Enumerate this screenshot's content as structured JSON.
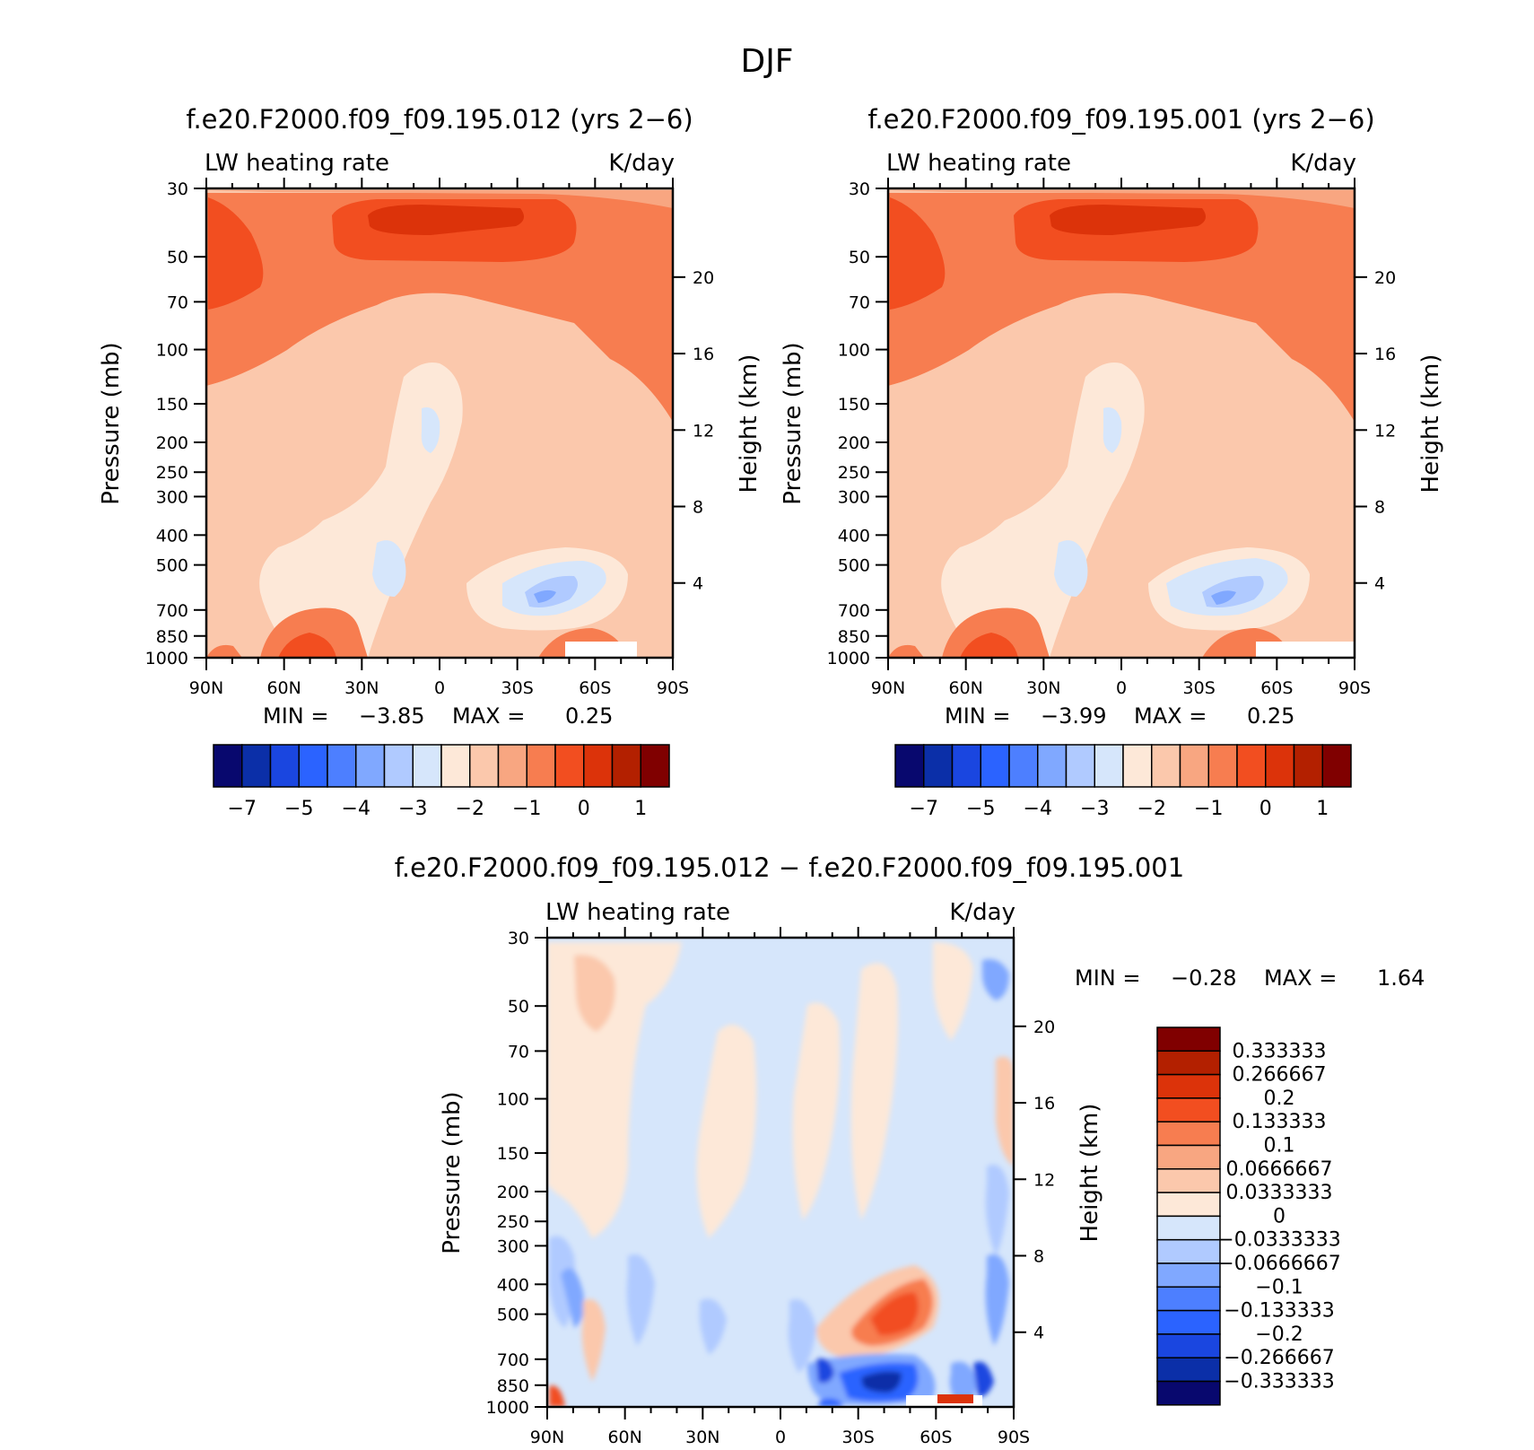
{
  "page_title": "DJF",
  "chart_data": [
    {
      "id": "panel1",
      "type": "heatmap",
      "title": "f.e20.F2000.f09_f09.195.012 (yrs 2−6)",
      "left_string": "LW heating rate",
      "right_string": "K/day",
      "ylabel": "Pressure (mb)",
      "ylabel_right": "Height (km)",
      "x_ticks": [
        "90N",
        "60N",
        "30N",
        "0",
        "30S",
        "60S",
        "90S"
      ],
      "y_ticks": [
        "30",
        "50",
        "70",
        "100",
        "150",
        "200",
        "250",
        "300",
        "400",
        "500",
        "700",
        "850",
        "1000"
      ],
      "y_ticks_right": [
        "20",
        "16",
        "12",
        "8",
        "4"
      ],
      "stats": {
        "min_label": "MIN =",
        "min": "−3.85",
        "max_label": "MAX =",
        "max": "0.25"
      },
      "colorbar_labels": [
        "−7",
        "−5",
        "−4",
        "−3",
        "−2",
        "−1",
        "0",
        "1"
      ]
    },
    {
      "id": "panel2",
      "type": "heatmap",
      "title": "f.e20.F2000.f09_f09.195.001 (yrs 2−6)",
      "left_string": "LW heating rate",
      "right_string": "K/day",
      "ylabel": "Pressure (mb)",
      "ylabel_right": "Height (km)",
      "x_ticks": [
        "90N",
        "60N",
        "30N",
        "0",
        "30S",
        "60S",
        "90S"
      ],
      "y_ticks": [
        "30",
        "50",
        "70",
        "100",
        "150",
        "200",
        "250",
        "300",
        "400",
        "500",
        "700",
        "850",
        "1000"
      ],
      "y_ticks_right": [
        "20",
        "16",
        "12",
        "8",
        "4"
      ],
      "stats": {
        "min_label": "MIN =",
        "min": "−3.99",
        "max_label": "MAX =",
        "max": "0.25"
      },
      "colorbar_labels": [
        "−7",
        "−5",
        "−4",
        "−3",
        "−2",
        "−1",
        "0",
        "1"
      ]
    },
    {
      "id": "panel3",
      "type": "heatmap",
      "title": "f.e20.F2000.f09_f09.195.012 − f.e20.F2000.f09_f09.195.001",
      "left_string": "LW heating rate",
      "right_string": "K/day",
      "ylabel": "Pressure (mb)",
      "ylabel_right": "Height (km)",
      "x_ticks": [
        "90N",
        "60N",
        "30N",
        "0",
        "30S",
        "60S",
        "90S"
      ],
      "y_ticks": [
        "30",
        "50",
        "70",
        "100",
        "150",
        "200",
        "250",
        "300",
        "400",
        "500",
        "700",
        "850",
        "1000"
      ],
      "y_ticks_right": [
        "20",
        "16",
        "12",
        "8",
        "4"
      ],
      "stats": {
        "min_label": "MIN =",
        "min": "−0.28",
        "max_label": "MAX =",
        "max": "1.64"
      },
      "colorbar_labels": [
        "0.333333",
        "0.266667",
        "0.2",
        "0.133333",
        "0.1",
        "0.0666667",
        "0.0333333",
        "0",
        "−0.0333333",
        "−0.0666667",
        "−0.1",
        "−0.133333",
        "−0.2",
        "−0.266667",
        "−0.333333"
      ]
    }
  ],
  "palette": [
    "#08086e",
    "#0b2fa8",
    "#1a46e0",
    "#2b63ff",
    "#4d7fff",
    "#80a8ff",
    "#b0caff",
    "#d6e6fb",
    "#fde8d8",
    "#fbc8ac",
    "#f8a681",
    "#f77d50",
    "#f24e20",
    "#dc330a",
    "#b32000",
    "#800000"
  ]
}
